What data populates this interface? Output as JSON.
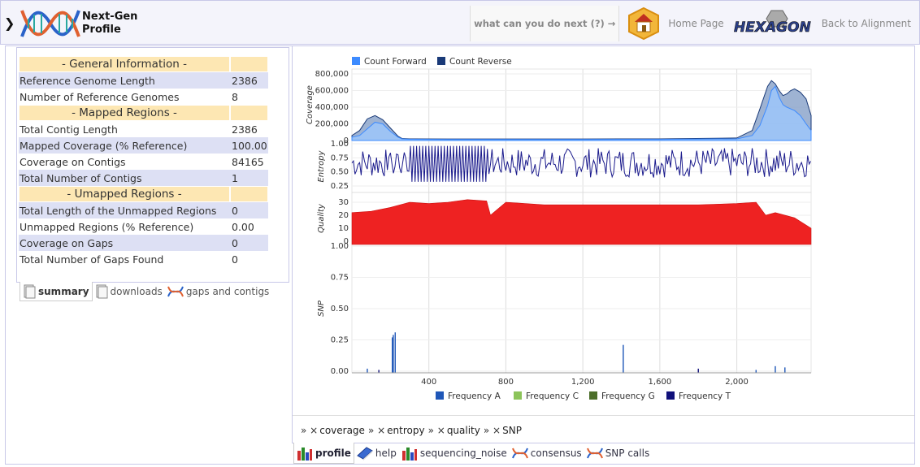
{
  "header": {
    "title_line1": "Next-Gen",
    "title_line2": "Profile",
    "next_label": "what can you do next (?) →",
    "home_label": "Home Page",
    "hexagon_logo_text": "HEXAGON",
    "back_label": "Back to Alignment"
  },
  "info": {
    "general_header": "- General Information -",
    "mapped_header": "- Mapped Regions -",
    "unmapped_header": "- Umapped Regions -",
    "rows": [
      {
        "k": "Reference Genome Length",
        "v": "2386"
      },
      {
        "k": "Number of Reference Genomes",
        "v": "8"
      },
      {
        "k": "Total Contig Length",
        "v": "2386"
      },
      {
        "k": "Mapped Coverage (% Reference)",
        "v": "100.00"
      },
      {
        "k": "Coverage on Contigs",
        "v": "84165"
      },
      {
        "k": "Total Number of Contigs",
        "v": "1"
      },
      {
        "k": "Total Length of the Unmapped Regions",
        "v": "0"
      },
      {
        "k": "Unmapped Regions (% Reference)",
        "v": "0.00"
      },
      {
        "k": "Coverage on Gaps",
        "v": "0"
      },
      {
        "k": "Total Number of Gaps Found",
        "v": "0"
      }
    ]
  },
  "left_tabs": {
    "summary": "summary",
    "downloads": "downloads",
    "gaps": "gaps and contigs"
  },
  "right_tabs": {
    "profile": "profile",
    "help": "help",
    "noise": "sequencing_noise",
    "consensus": "consensus",
    "snp": "SNP calls"
  },
  "plot_links": {
    "coverage": "coverage",
    "entropy": "entropy",
    "quality": "quality",
    "snp": "SNP",
    "prefix": "» ×"
  },
  "colors": {
    "forward": "#3d8bff",
    "reverse": "#1a3a78",
    "quality": "#ee2222",
    "entropy": "#1a1a8c",
    "freqA": "#1f57b8",
    "freqC": "#8cc45a",
    "freqG": "#4c6e2a",
    "freqT": "#10107a"
  },
  "chart_data": [
    {
      "type": "area",
      "ylabel": "Coverage",
      "yticks": [
        "800,000",
        "600,000",
        "400,000",
        "200,000",
        "0"
      ],
      "ylim": [
        0,
        800000
      ],
      "xlim": [
        0,
        2386
      ],
      "series": [
        {
          "name": "Count Forward",
          "x": [
            0,
            40,
            80,
            120,
            160,
            200,
            240,
            260,
            300,
            500,
            800,
            1200,
            1600,
            2000,
            2080,
            2120,
            2160,
            2180,
            2200,
            2220,
            2240,
            2260,
            2280,
            2300,
            2330,
            2360,
            2386
          ],
          "y": [
            40000,
            60000,
            140000,
            220000,
            200000,
            110000,
            40000,
            20000,
            15000,
            12000,
            12000,
            12000,
            14000,
            20000,
            60000,
            180000,
            420000,
            600000,
            650000,
            520000,
            430000,
            400000,
            380000,
            360000,
            300000,
            200000,
            120000
          ]
        },
        {
          "name": "Count Reverse",
          "x": [
            0,
            40,
            80,
            120,
            160,
            200,
            240,
            260,
            300,
            500,
            800,
            1200,
            1600,
            2000,
            2080,
            2120,
            2160,
            2180,
            2200,
            2220,
            2240,
            2260,
            2280,
            2300,
            2330,
            2360,
            2386
          ],
          "y": [
            60000,
            120000,
            260000,
            300000,
            250000,
            150000,
            50000,
            25000,
            20000,
            18000,
            18000,
            18000,
            20000,
            30000,
            120000,
            380000,
            650000,
            720000,
            680000,
            600000,
            540000,
            560000,
            600000,
            620000,
            580000,
            500000,
            300000
          ]
        }
      ]
    },
    {
      "type": "line",
      "ylabel": "Entropy",
      "yticks": [
        "1.00",
        "0.75",
        "0.50",
        "0.25"
      ],
      "ylim": [
        0,
        1
      ],
      "xlim": [
        0,
        2386
      ],
      "series": [
        {
          "name": "Entropy",
          "description_range": [
            0.1,
            0.95
          ]
        }
      ]
    },
    {
      "type": "area",
      "ylabel": "Quality",
      "yticks": [
        "30",
        "20",
        "10",
        "0"
      ],
      "ylim": [
        0,
        35
      ],
      "xlim": [
        0,
        2386
      ],
      "series": [
        {
          "name": "Quality",
          "x": [
            0,
            100,
            200,
            300,
            400,
            500,
            600,
            700,
            720,
            800,
            1000,
            1200,
            1400,
            1600,
            1800,
            2000,
            2100,
            2150,
            2200,
            2300,
            2386
          ],
          "y": [
            22,
            23,
            26,
            30,
            29,
            30,
            32,
            31,
            20,
            30,
            28,
            28,
            28,
            28,
            28,
            29,
            30,
            20,
            22,
            18,
            10
          ]
        }
      ]
    },
    {
      "type": "bar",
      "ylabel": "SNP",
      "yticks": [
        "1.00",
        "0.75",
        "0.50",
        "0.25",
        "0.00"
      ],
      "ylim": [
        0,
        1
      ],
      "xlim": [
        0,
        2386
      ],
      "xticks": [
        "400",
        "800",
        "1,200",
        "1,600",
        "2,000"
      ],
      "xtick_values": [
        400,
        800,
        1200,
        1600,
        2000
      ],
      "series": [
        {
          "name": "Frequency A",
          "x": [
            80,
            210,
            215,
            225,
            1410,
            2100,
            2200,
            2250
          ],
          "y": [
            0.02,
            0.27,
            0.29,
            0.31,
            0.21,
            0.01,
            0.04,
            0.03
          ]
        },
        {
          "name": "Frequency C",
          "x": [],
          "y": []
        },
        {
          "name": "Frequency G",
          "x": [],
          "y": []
        },
        {
          "name": "Frequency T",
          "x": [
            140,
            1800
          ],
          "y": [
            0.01,
            0.02
          ]
        }
      ]
    }
  ]
}
